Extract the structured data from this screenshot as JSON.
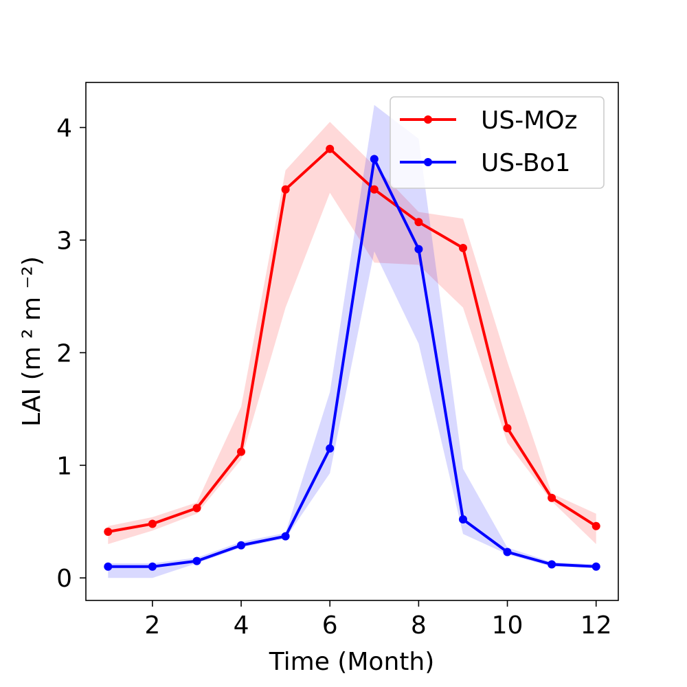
{
  "chart_data": {
    "type": "line",
    "title": "",
    "xlabel": "Time (Month)",
    "ylabel": "LAI (m ² m ⁻²)",
    "xlim": [
      0.5,
      12.5
    ],
    "ylim": [
      -0.2,
      4.4
    ],
    "xticks": [
      2,
      4,
      6,
      8,
      10,
      12
    ],
    "yticks": [
      0,
      1,
      2,
      3,
      4
    ],
    "grid": false,
    "legend_position": "top-right",
    "x": [
      1,
      2,
      3,
      4,
      5,
      6,
      7,
      8,
      9,
      10,
      11,
      12
    ],
    "series": [
      {
        "name": "US-MOz",
        "color": "#ff0000",
        "band_color": "#ff0000",
        "values": [
          0.41,
          0.48,
          0.62,
          1.12,
          3.45,
          3.81,
          3.45,
          3.16,
          2.93,
          1.33,
          0.71,
          0.46
        ],
        "lower": [
          0.3,
          0.42,
          0.57,
          1.05,
          2.4,
          3.42,
          2.8,
          2.78,
          2.4,
          1.2,
          0.68,
          0.3
        ],
        "upper": [
          0.46,
          0.54,
          0.67,
          1.52,
          3.62,
          4.05,
          3.66,
          3.25,
          3.19,
          1.92,
          0.75,
          0.57
        ]
      },
      {
        "name": "US-Bo1",
        "color": "#0000ff",
        "band_color": "#0000ff",
        "values": [
          0.1,
          0.1,
          0.15,
          0.29,
          0.37,
          1.15,
          3.72,
          2.92,
          0.52,
          0.23,
          0.12,
          0.1
        ],
        "lower": [
          0.0,
          0.0,
          0.13,
          0.27,
          0.35,
          0.93,
          2.9,
          2.08,
          0.39,
          0.21,
          0.1,
          0.09
        ],
        "upper": [
          0.13,
          0.13,
          0.18,
          0.32,
          0.4,
          1.65,
          4.2,
          3.9,
          0.97,
          0.27,
          0.14,
          0.12
        ]
      }
    ]
  }
}
